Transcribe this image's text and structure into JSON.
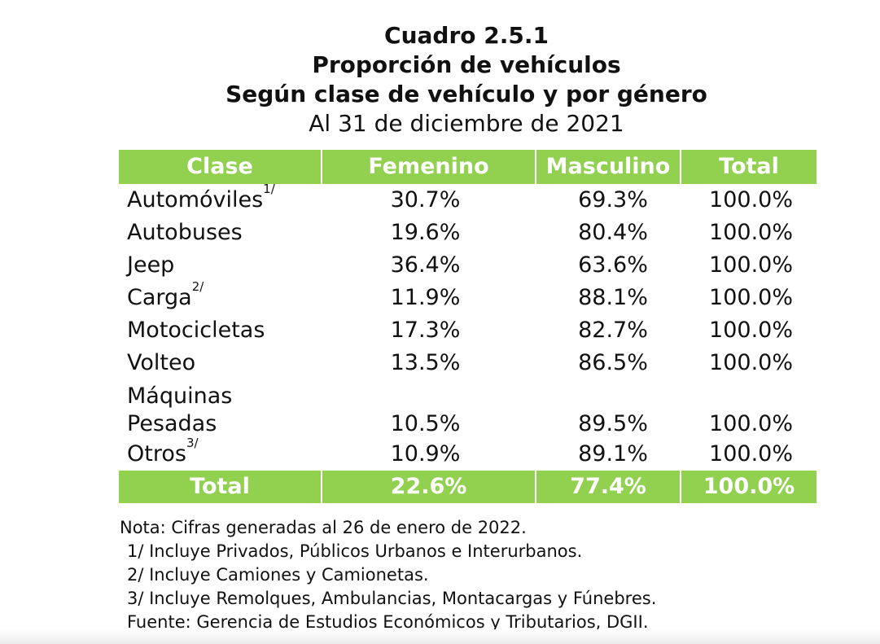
{
  "title": {
    "line1": "Cuadro 2.5.1",
    "line2": "Proporción de vehículos",
    "line3": "Según clase de vehículo y por género",
    "line4": "Al 31 de diciembre de 2021"
  },
  "table": {
    "header_color": "#92d050",
    "headers": [
      "Clase",
      "Femenino",
      "Masculino",
      "Total"
    ],
    "rows": [
      {
        "clase": "Automóviles",
        "note": "1/",
        "femenino": "30.7%",
        "masculino": "69.3%",
        "total": "100.0%"
      },
      {
        "clase": "Autobuses",
        "note": "",
        "femenino": "19.6%",
        "masculino": "80.4%",
        "total": "100.0%"
      },
      {
        "clase": "Jeep",
        "note": "",
        "femenino": "36.4%",
        "masculino": "63.6%",
        "total": "100.0%"
      },
      {
        "clase": "Carga",
        "note": "2/",
        "femenino": "11.9%",
        "masculino": "88.1%",
        "total": "100.0%"
      },
      {
        "clase": "Motocicletas",
        "note": "",
        "femenino": "17.3%",
        "masculino": "82.7%",
        "total": "100.0%"
      },
      {
        "clase": "Volteo",
        "note": "",
        "femenino": "13.5%",
        "masculino": "86.5%",
        "total": "100.0%"
      },
      {
        "clase_line1": "Máquinas",
        "clase_line2": "Pesadas",
        "femenino": "10.5%",
        "masculino": "89.5%",
        "total": "100.0%"
      },
      {
        "clase": "Otros",
        "note": "3/",
        "femenino": "10.9%",
        "masculino": "89.1%",
        "total": "100.0%"
      }
    ],
    "footer": {
      "clase": "Total",
      "femenino": "22.6%",
      "masculino": "77.4%",
      "total": "100.0%"
    }
  },
  "notes": {
    "nota": "Nota: Cifras generadas al 26 de enero de 2022.",
    "n1": "1/ Incluye Privados, Públicos Urbanos e Interurbanos.",
    "n2": "2/ Incluye Camiones y Camionetas.",
    "n3": "3/ Incluye Remolques, Ambulancias, Montacargas y Fúnebres.",
    "fuente": "Fuente: Gerencia de Estudios Económicos y Tributarios, DGII."
  }
}
